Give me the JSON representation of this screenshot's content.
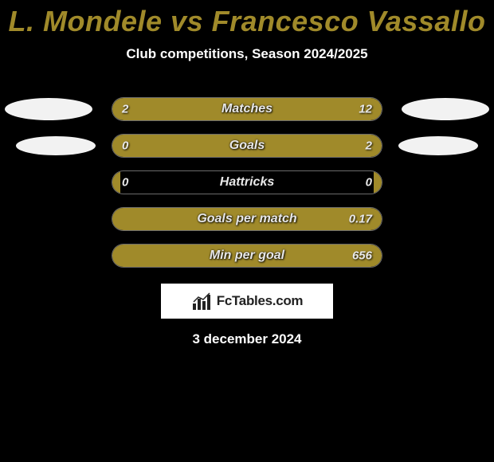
{
  "title": "L. Mondele vs Francesco Vassallo",
  "subtitle": "Club competitions, Season 2024/2025",
  "date": "3 december 2024",
  "logo_text": "FcTables.com",
  "colors": {
    "left_bar": "#a08a2a",
    "right_bar": "#a08a2a",
    "bar_border": "#6b6b6b",
    "title_color": "#a08a2a",
    "background": "#000000",
    "text_light": "#e8e8e8",
    "oval": "#f2f2f2"
  },
  "stats": [
    {
      "label": "Matches",
      "left_val": "2",
      "right_val": "12",
      "left_pct": 18,
      "right_pct": 82,
      "show_ovals": true,
      "oval_small": false
    },
    {
      "label": "Goals",
      "left_val": "0",
      "right_val": "2",
      "left_pct": 3,
      "right_pct": 97,
      "show_ovals": true,
      "oval_small": true
    },
    {
      "label": "Hattricks",
      "left_val": "0",
      "right_val": "0",
      "left_pct": 3,
      "right_pct": 3,
      "show_ovals": false
    },
    {
      "label": "Goals per match",
      "left_val": "",
      "right_val": "0.17",
      "left_pct": 3,
      "right_pct": 97,
      "show_ovals": false
    },
    {
      "label": "Min per goal",
      "left_val": "",
      "right_val": "656",
      "left_pct": 3,
      "right_pct": 97,
      "show_ovals": false
    }
  ]
}
